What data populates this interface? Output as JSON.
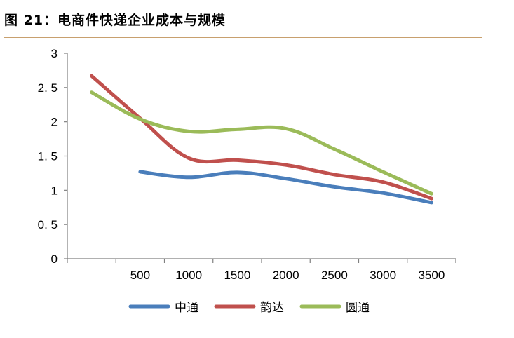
{
  "figure": {
    "title": "图 21：电商件快递企业成本与规模"
  },
  "chart_data": {
    "type": "line",
    "title": "图 21：电商件快递企业成本与规模",
    "xlabel": "",
    "ylabel": "",
    "ylim": [
      0,
      3
    ],
    "yticks": [
      "0",
      "0. 5",
      "1",
      "1. 5",
      "2",
      "2. 5",
      "3"
    ],
    "ytick_values": [
      0,
      0.5,
      1,
      1.5,
      2,
      2.5,
      3
    ],
    "xticks": [
      "500",
      "1000",
      "1500",
      "2000",
      "2500",
      "3000",
      "3500"
    ],
    "xlim": [
      0,
      3500
    ],
    "grid": false,
    "legend_position": "bottom",
    "series": [
      {
        "name": "中通",
        "color": "#4a7ebb",
        "x": [
          500,
          1000,
          1500,
          2000,
          2500,
          3000,
          3500
        ],
        "values": [
          1.27,
          1.19,
          1.26,
          1.17,
          1.05,
          0.96,
          0.82
        ]
      },
      {
        "name": "韵达",
        "color": "#c0504d",
        "x": [
          0,
          500,
          1000,
          1500,
          2000,
          2500,
          3000,
          3500
        ],
        "values": [
          2.67,
          2.05,
          1.47,
          1.44,
          1.37,
          1.23,
          1.12,
          0.88
        ]
      },
      {
        "name": "圆通",
        "color": "#9bbb59",
        "x": [
          0,
          500,
          1000,
          1500,
          2000,
          2500,
          3000,
          3500
        ],
        "values": [
          2.43,
          2.04,
          1.86,
          1.89,
          1.9,
          1.6,
          1.27,
          0.95
        ]
      }
    ]
  }
}
